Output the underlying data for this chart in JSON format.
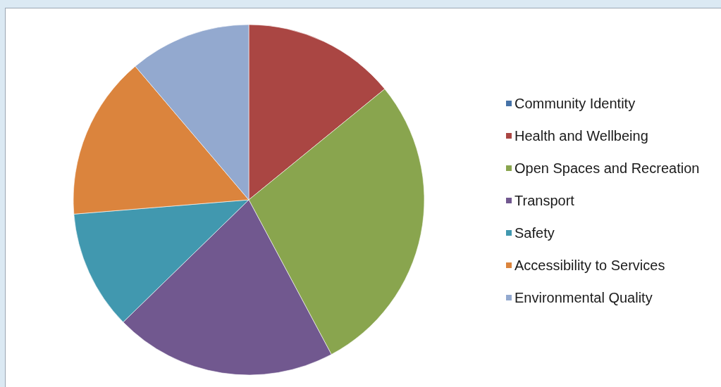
{
  "chart_data": {
    "type": "pie",
    "categories": [
      "Community Identity",
      "Health and Wellbeing",
      "Open Spaces and Recreation",
      "Transport",
      "Safety",
      "Accessibility to Services",
      "Environmental Quality"
    ],
    "values": [
      0,
      14.1,
      28.1,
      20.5,
      11,
      15.1,
      11.2
    ],
    "colors": [
      "#4572a7",
      "#aa4643",
      "#89a54e",
      "#71588f",
      "#4198af",
      "#db843d",
      "#93a9cf"
    ],
    "legend": "right"
  }
}
